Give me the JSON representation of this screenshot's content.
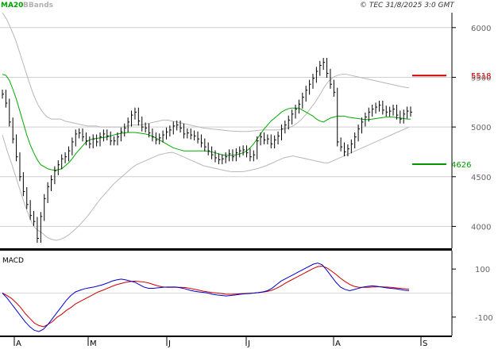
{
  "header": {
    "legend_ma": "MA20",
    "legend_bb": "BBands",
    "copyright": "© TEC 31/8/2025 3:0 GMT"
  },
  "chart_data": {
    "type": "line",
    "price_axis": {
      "ticks": [
        4000,
        4500,
        5000,
        5500,
        6000
      ],
      "tick_labels": [
        "4000",
        "4500",
        "5000",
        "5500",
        "6000"
      ],
      "ylim": [
        3780,
        6150
      ]
    },
    "x_axis": {
      "month_labels": [
        "A",
        "M",
        "J",
        "J",
        "A",
        "S"
      ]
    },
    "levels": [
      {
        "label": "5518",
        "value": 5518,
        "color": "#cc0000"
      },
      {
        "label": "4626",
        "value": 4626,
        "color": "#009900"
      }
    ],
    "series_price": [
      5330,
      5240,
      5050,
      4880,
      4700,
      4500,
      4350,
      4220,
      4110,
      4050,
      3880,
      4100,
      4280,
      4400,
      4470,
      4560,
      4620,
      4680,
      4700,
      4760,
      4850,
      4930,
      4940,
      4900,
      4860,
      4830,
      4880,
      4850,
      4900,
      4930,
      4910,
      4860,
      4860,
      4900,
      4950,
      4990,
      5050,
      5120,
      5150,
      5060,
      5000,
      4990,
      4940,
      4900,
      4870,
      4890,
      4920,
      4950,
      4970,
      5010,
      5020,
      4990,
      4930,
      4940,
      4920,
      4910,
      4880,
      4840,
      4800,
      4760,
      4720,
      4690,
      4670,
      4680,
      4700,
      4730,
      4700,
      4740,
      4760,
      4770,
      4740,
      4700,
      4720,
      4860,
      4900,
      4870,
      4880,
      4830,
      4870,
      4910,
      4980,
      5020,
      5070,
      5130,
      5180,
      5230,
      5300,
      5370,
      5430,
      5490,
      5560,
      5620,
      5650,
      5540,
      5430,
      5350,
      4850,
      4800,
      4750,
      4780,
      4830,
      4900,
      4980,
      5050,
      5100,
      5150,
      5180,
      5200,
      5220,
      5170,
      5150,
      5160,
      5180,
      5120,
      5080,
      5130,
      5160,
      5150
    ],
    "series_ma20": [
      5530,
      5520,
      5470,
      5380,
      5280,
      5160,
      5040,
      4920,
      4820,
      4740,
      4670,
      4620,
      4600,
      4580,
      4570,
      4565,
      4570,
      4580,
      4610,
      4640,
      4680,
      4730,
      4770,
      4810,
      4850,
      4870,
      4880,
      4885,
      4890,
      4895,
      4900,
      4910,
      4920,
      4930,
      4935,
      4940,
      4945,
      4945,
      4945,
      4940,
      4935,
      4930,
      4920,
      4905,
      4890,
      4870,
      4850,
      4830,
      4810,
      4790,
      4780,
      4770,
      4760,
      4760,
      4760,
      4760,
      4760,
      4760,
      4760,
      4755,
      4750,
      4740,
      4730,
      4720,
      4715,
      4715,
      4715,
      4720,
      4730,
      4740,
      4760,
      4790,
      4830,
      4880,
      4930,
      4980,
      5020,
      5060,
      5090,
      5120,
      5150,
      5170,
      5185,
      5190,
      5190,
      5190,
      5170,
      5150,
      5130,
      5110,
      5080,
      5060,
      5050,
      5070,
      5090,
      5100,
      5110,
      5110,
      5110,
      5100,
      5095,
      5090,
      5085,
      5080,
      5075,
      5075,
      5080,
      5085,
      5090,
      5095,
      5100,
      5100,
      5100,
      5095,
      5090,
      5085,
      5080,
      5080
    ],
    "series_bb_upper": [
      6150,
      6080,
      5980,
      5870,
      5730,
      5590,
      5450,
      5320,
      5220,
      5150,
      5100,
      5080,
      5080,
      5080,
      5060,
      5050,
      5040,
      5030,
      5020,
      5010,
      5010,
      5010,
      5000,
      5000,
      5000,
      5000,
      5000,
      5000,
      5010,
      5020,
      5020,
      5020,
      5030,
      5040,
      5050,
      5060,
      5070,
      5070,
      5060,
      5050,
      5040,
      5030,
      5020,
      5010,
      5000,
      4990,
      4985,
      4980,
      4975,
      4970,
      4965,
      4960,
      4958,
      4955,
      4955,
      4955,
      4960,
      4965,
      4970,
      4970,
      4970,
      4970,
      4972,
      4980,
      4990,
      5010,
      5040,
      5080,
      5130,
      5190,
      5250,
      5320,
      5400,
      5460,
      5500,
      5520,
      5530,
      5530,
      5520,
      5510,
      5500,
      5490,
      5480,
      5470,
      5460,
      5450,
      5440,
      5430,
      5420,
      5410,
      5400,
      5395
    ],
    "series_bb_lower": [
      4920,
      4770,
      4640,
      4500,
      4360,
      4220,
      4100,
      4000,
      3960,
      3930,
      3890,
      3870,
      3860,
      3870,
      3890,
      3920,
      3960,
      4000,
      4050,
      4100,
      4160,
      4220,
      4280,
      4330,
      4380,
      4430,
      4470,
      4510,
      4550,
      4590,
      4620,
      4640,
      4660,
      4680,
      4700,
      4720,
      4730,
      4740,
      4745,
      4730,
      4710,
      4690,
      4670,
      4650,
      4630,
      4610,
      4600,
      4590,
      4580,
      4570,
      4560,
      4552,
      4550,
      4550,
      4552,
      4560,
      4570,
      4580,
      4595,
      4610,
      4630,
      4650,
      4670,
      4690,
      4700,
      4710,
      4700,
      4690,
      4680,
      4670,
      4660,
      4650,
      4640,
      4640,
      4660,
      4680,
      4700,
      4720,
      4740,
      4760,
      4780,
      4800,
      4820,
      4840,
      4860,
      4880,
      4900,
      4920,
      4940,
      4960,
      4980,
      5000
    ],
    "macd_axis": {
      "ticks": [
        100,
        -100
      ],
      "tick_labels": [
        "100",
        "-100"
      ],
      "ylim": [
        -170,
        170
      ]
    },
    "series_macd": [
      0,
      -20,
      -45,
      -70,
      -95,
      -120,
      -140,
      -155,
      -160,
      -150,
      -130,
      -105,
      -80,
      -55,
      -30,
      -10,
      5,
      12,
      18,
      22,
      25,
      30,
      35,
      42,
      50,
      55,
      58,
      55,
      50,
      45,
      35,
      25,
      20,
      20,
      22,
      24,
      25,
      25,
      25,
      22,
      18,
      12,
      8,
      5,
      3,
      0,
      -5,
      -8,
      -10,
      -12,
      -10,
      -8,
      -5,
      -3,
      -2,
      0,
      2,
      5,
      10,
      20,
      35,
      50,
      60,
      70,
      80,
      90,
      100,
      110,
      120,
      125,
      118,
      95,
      70,
      45,
      25,
      15,
      10,
      15,
      20,
      25,
      28,
      30,
      28,
      25,
      22,
      20,
      18,
      15,
      12,
      10
    ],
    "series_signal": [
      0,
      -10,
      -22,
      -40,
      -60,
      -85,
      -105,
      -125,
      -135,
      -140,
      -130,
      -118,
      -100,
      -88,
      -72,
      -60,
      -45,
      -35,
      -25,
      -15,
      -5,
      5,
      12,
      20,
      28,
      35,
      40,
      45,
      48,
      50,
      48,
      46,
      42,
      36,
      30,
      26,
      24,
      24,
      24,
      24,
      23,
      20,
      16,
      12,
      8,
      5,
      2,
      0,
      -2,
      -5,
      -5,
      -4,
      -3,
      -2,
      -1,
      0,
      2,
      4,
      7,
      12,
      20,
      30,
      42,
      52,
      62,
      72,
      82,
      92,
      102,
      110,
      112,
      105,
      92,
      78,
      62,
      48,
      36,
      28,
      24,
      24,
      24,
      25,
      26,
      26,
      25,
      24,
      22,
      20,
      18,
      16
    ]
  }
}
